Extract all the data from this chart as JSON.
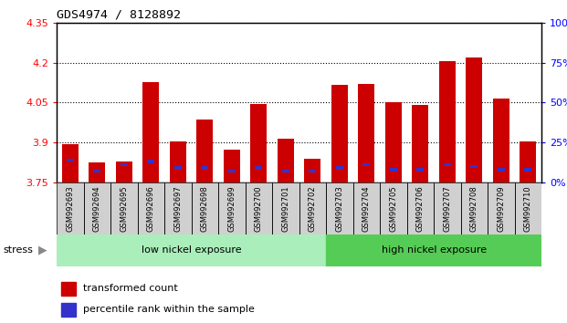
{
  "title": "GDS4974 / 8128892",
  "samples": [
    "GSM992693",
    "GSM992694",
    "GSM992695",
    "GSM992696",
    "GSM992697",
    "GSM992698",
    "GSM992699",
    "GSM992700",
    "GSM992701",
    "GSM992702",
    "GSM992703",
    "GSM992704",
    "GSM992705",
    "GSM992706",
    "GSM992707",
    "GSM992708",
    "GSM992709",
    "GSM992710"
  ],
  "red_values": [
    3.895,
    3.825,
    3.83,
    4.125,
    3.905,
    3.985,
    3.875,
    4.045,
    3.915,
    3.84,
    4.115,
    4.12,
    4.05,
    4.04,
    4.205,
    4.22,
    4.065,
    3.905
  ],
  "blue_pct": [
    15,
    8,
    12,
    14,
    10,
    10,
    8,
    10,
    8,
    8,
    10,
    12,
    9,
    9,
    12,
    11,
    9,
    9
  ],
  "ymin": 3.75,
  "ymax": 4.35,
  "yticks_left": [
    3.75,
    3.9,
    4.05,
    4.2,
    4.35
  ],
  "right_pct_ticks": [
    0,
    25,
    50,
    75,
    100
  ],
  "bar_color": "#cc0000",
  "blue_color": "#3333cc",
  "plot_bg": "#ffffff",
  "xtick_bg": "#d0d0d0",
  "low_nickel_color": "#aaeebb",
  "high_nickel_color": "#55cc55",
  "band_border": "#000000",
  "stress_label": "stress",
  "low_label": "low nickel exposure",
  "high_label": "high nickel exposure",
  "legend1": "transformed count",
  "legend2": "percentile rank within the sample",
  "n_low": 10,
  "n_high": 8
}
